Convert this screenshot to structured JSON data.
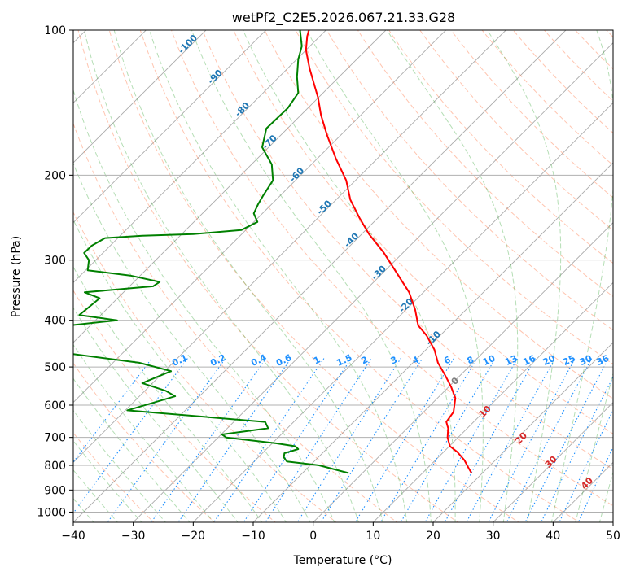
{
  "chart_data": {
    "type": "line",
    "title": "wetPf2_C2E5.2026.067.21.33.G28",
    "xlabel": "Temperature (°C)",
    "ylabel": "Pressure (hPa)",
    "xlim": [
      -40,
      50
    ],
    "ylim": [
      1050,
      100
    ],
    "y_scale": "log",
    "x_ticks": [
      -40,
      -30,
      -20,
      -10,
      0,
      10,
      20,
      30,
      40,
      50
    ],
    "x_tick_labels": [
      "−40",
      "−30",
      "−20",
      "−10",
      "0",
      "10",
      "20",
      "30",
      "40",
      "50"
    ],
    "y_ticks": [
      100,
      200,
      300,
      400,
      500,
      600,
      700,
      800,
      900,
      1000
    ],
    "y_tick_labels": [
      "100",
      "200",
      "300",
      "400",
      "500",
      "600",
      "700",
      "800",
      "900",
      "1000"
    ],
    "grid": true,
    "series": [
      {
        "role": "temperature",
        "color": "#ff0000",
        "points": [
          [
            26.4,
            830
          ],
          [
            25.9,
            810
          ],
          [
            25.2,
            780
          ],
          [
            24.0,
            750
          ],
          [
            22.8,
            730
          ],
          [
            22.4,
            700
          ],
          [
            22.5,
            670
          ],
          [
            22.2,
            650
          ],
          [
            23.4,
            620
          ],
          [
            23.7,
            580
          ],
          [
            23.0,
            550
          ],
          [
            22.0,
            520
          ],
          [
            20.8,
            490
          ],
          [
            20.2,
            460
          ],
          [
            18.9,
            430
          ],
          [
            17.5,
            410
          ],
          [
            17.0,
            380
          ],
          [
            16.0,
            350
          ],
          [
            14.0,
            320
          ],
          [
            11.8,
            290
          ],
          [
            9.3,
            265
          ],
          [
            7.7,
            245
          ],
          [
            6.2,
            225
          ],
          [
            5.5,
            205
          ],
          [
            3.8,
            185
          ],
          [
            2.3,
            165
          ],
          [
            1.3,
            150
          ],
          [
            0.8,
            138
          ],
          [
            0.2,
            130
          ],
          [
            -0.6,
            120
          ],
          [
            -1.2,
            110
          ],
          [
            -1.0,
            103
          ],
          [
            -0.7,
            100
          ]
        ]
      },
      {
        "role": "dewpoint",
        "color": "#008000",
        "points": [
          [
            5.9,
            830
          ],
          [
            1.0,
            800
          ],
          [
            -4.4,
            785
          ],
          [
            -4.9,
            770
          ],
          [
            -4.8,
            755
          ],
          [
            -2.5,
            740
          ],
          [
            -3.0,
            730
          ],
          [
            -6.2,
            720
          ],
          [
            -14.5,
            700
          ],
          [
            -15.2,
            690
          ],
          [
            -7.5,
            670
          ],
          [
            -8.0,
            650
          ],
          [
            -31.0,
            615
          ],
          [
            -23.0,
            575
          ],
          [
            -24.6,
            560
          ],
          [
            -28.5,
            540
          ],
          [
            -23.7,
            510
          ],
          [
            -29.0,
            490
          ],
          [
            -40.1,
            470
          ],
          [
            -40.6,
            410
          ],
          [
            -32.7,
            400
          ],
          [
            -39.0,
            390
          ],
          [
            -35.6,
            360
          ],
          [
            -38.1,
            350
          ],
          [
            -26.7,
            340
          ],
          [
            -25.6,
            333
          ],
          [
            -30.5,
            323
          ],
          [
            -37.6,
            315
          ],
          [
            -37.4,
            300
          ],
          [
            -38.2,
            290
          ],
          [
            -36.9,
            280
          ],
          [
            -34.7,
            270
          ],
          [
            -28.5,
            267
          ],
          [
            -20.0,
            265
          ],
          [
            -12.0,
            260
          ],
          [
            -9.3,
            250
          ],
          [
            -9.9,
            240
          ],
          [
            -9.2,
            230
          ],
          [
            -8.3,
            220
          ],
          [
            -6.7,
            205
          ],
          [
            -6.9,
            190
          ],
          [
            -8.5,
            175
          ],
          [
            -7.8,
            160
          ],
          [
            -4.2,
            145
          ],
          [
            -2.5,
            135
          ],
          [
            -2.7,
            125
          ],
          [
            -2.5,
            115
          ],
          [
            -1.9,
            108
          ],
          [
            -2.2,
            100
          ]
        ]
      }
    ],
    "reference_lines": {
      "dry_adiabats": "orange dashed",
      "moist_adiabats": "green dashed",
      "mixing_ratio_lines": "blue dotted",
      "isotherms_skew": "grey solid"
    },
    "isotherm_labels": [
      "-100",
      "-90",
      "-80",
      "-70",
      "-60",
      "-50",
      "-40",
      "-30",
      "-20",
      "-10"
    ],
    "mixing_ratio_labels": [
      "0.1",
      "0.2",
      "0.4",
      "0.6",
      "1",
      "1.5",
      "2",
      "3",
      "4",
      "6",
      "8",
      "10",
      "13",
      "16",
      "20",
      "25",
      "30",
      "36"
    ],
    "moist_adiabat_labels": [
      "0",
      "10",
      "20",
      "30",
      "40"
    ],
    "colors": {
      "isotherm_label": "#1f77b4",
      "mixing_ratio": "#1e90ff",
      "moist_label": "#d62728",
      "zero_label": "#808080"
    }
  }
}
